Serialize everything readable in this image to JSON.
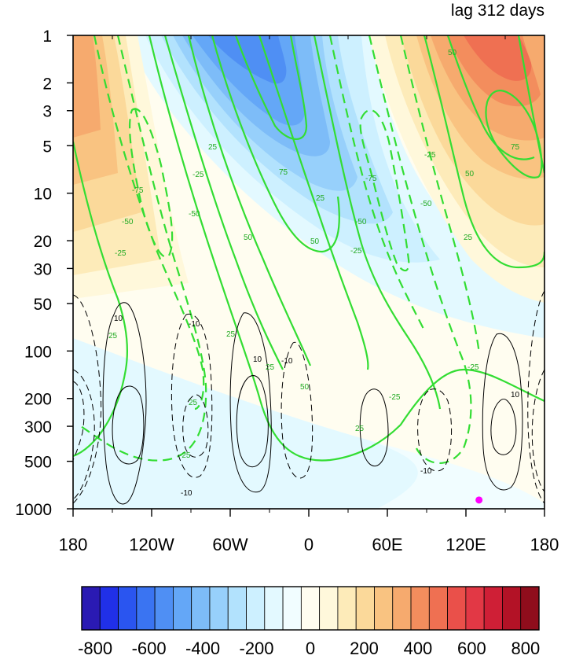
{
  "chart_data": {
    "type": "heatmap",
    "title_right": "lag 312 days",
    "x_axis": {
      "ticks": [
        "180",
        "120W",
        "60W",
        "0",
        "60E",
        "120E",
        "180"
      ],
      "tick_lon": [
        -180,
        -120,
        -60,
        0,
        60,
        120,
        180
      ],
      "range": [
        -180,
        180
      ]
    },
    "y_axis": {
      "scale": "log",
      "reversed": true,
      "range": [
        1,
        1000
      ],
      "ticks": [
        "1",
        "2",
        "3",
        "5",
        "10",
        "20",
        "30",
        "50",
        "100",
        "200",
        "300",
        "500",
        "1000"
      ],
      "tick_values": [
        1,
        2,
        3,
        5,
        10,
        20,
        30,
        50,
        100,
        200,
        300,
        500,
        1000
      ]
    },
    "colorbar": {
      "tick_labels": [
        "-800",
        "-600",
        "-400",
        "-200",
        "0",
        "200",
        "400",
        "600",
        "800"
      ],
      "tick_values": [
        -800,
        -600,
        -400,
        -200,
        0,
        200,
        400,
        600,
        800
      ],
      "colors": [
        "#2a1ab3",
        "#2030e8",
        "#2a55f0",
        "#3a74f2",
        "#4f8ff4",
        "#64a7f7",
        "#7dbcf8",
        "#97d0fb",
        "#b2e2fd",
        "#cdf0ff",
        "#e3f9ff",
        "#f1fdff",
        "#fffdf0",
        "#fff8db",
        "#fdebb9",
        "#fbd99a",
        "#f9c381",
        "#f6aa6e",
        "#f38d5d",
        "#ef7052",
        "#ea504a",
        "#e23845",
        "#cf1f36",
        "#b31226",
        "#8f0d1c"
      ]
    },
    "contour_labels_green": [
      "-25",
      "-50",
      "-75",
      "25",
      "50",
      "75"
    ],
    "contour_labels_black": [
      "-10",
      "10"
    ],
    "marker": {
      "lon": 130,
      "pressure": 880,
      "color": "#ff00ff"
    }
  }
}
